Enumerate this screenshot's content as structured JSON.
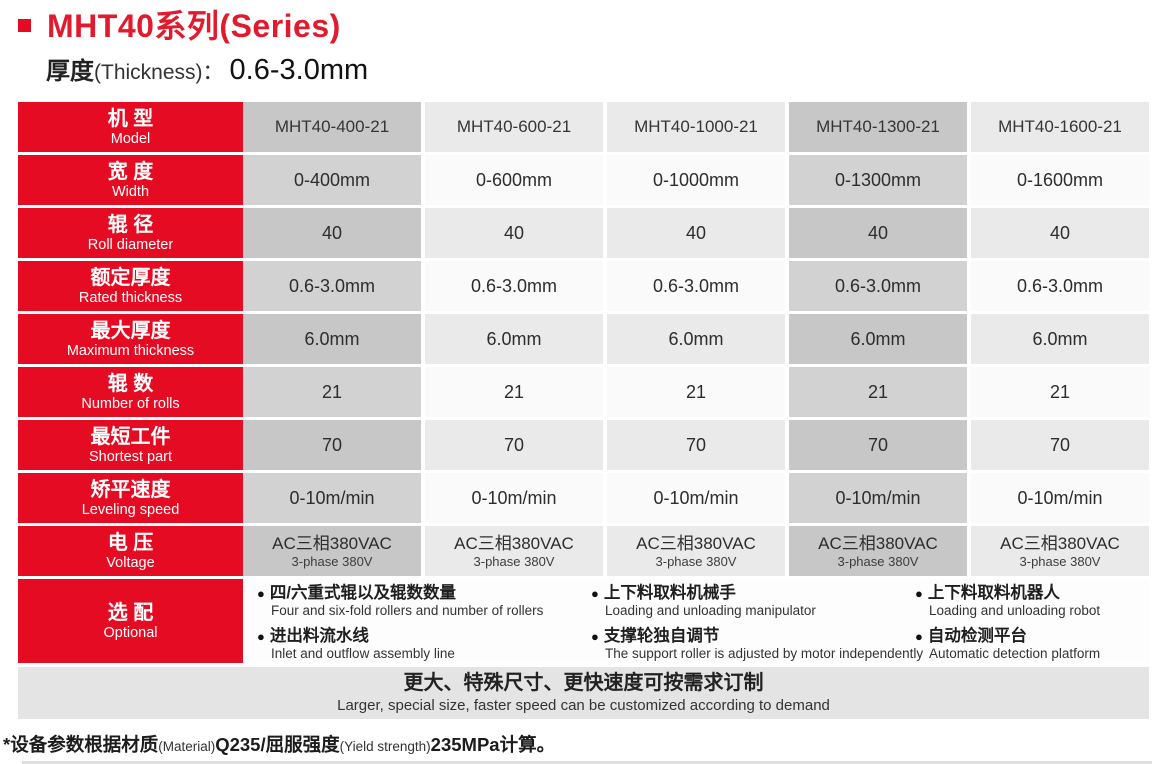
{
  "icons": {
    "bullet": "●"
  },
  "colors": {
    "brand_red": "#e40b22",
    "banner_gray": "#e4e4e4",
    "dark_col": "#c7c7c7",
    "light_col": "#eaeaea"
  },
  "header": {
    "title": "MHT40系列(Series)",
    "subtitle": {
      "cn": "厚度",
      "en": "(Thickness)：",
      "value": "0.6-3.0mm"
    }
  },
  "table": {
    "rows": [
      {
        "cn": "机 型",
        "en": "Model",
        "values": [
          "MHT40-400-21",
          "MHT40-600-21",
          "MHT40-1000-21",
          "MHT40-1300-21",
          "MHT40-1600-21"
        ]
      },
      {
        "cn": "宽 度",
        "en": "Width",
        "values": [
          "0-400mm",
          "0-600mm",
          "0-1000mm",
          "0-1300mm",
          "0-1600mm"
        ]
      },
      {
        "cn": "辊 径",
        "en": "Roll diameter",
        "values": [
          "40",
          "40",
          "40",
          "40",
          "40"
        ]
      },
      {
        "cn": "额定厚度",
        "en": "Rated thickness",
        "values": [
          "0.6-3.0mm",
          "0.6-3.0mm",
          "0.6-3.0mm",
          "0.6-3.0mm",
          "0.6-3.0mm"
        ]
      },
      {
        "cn": "最大厚度",
        "en": "Maximum thickness",
        "values": [
          "6.0mm",
          "6.0mm",
          "6.0mm",
          "6.0mm",
          "6.0mm"
        ]
      },
      {
        "cn": "辊 数",
        "en": "Number of rolls",
        "values": [
          "21",
          "21",
          "21",
          "21",
          "21"
        ]
      },
      {
        "cn": "最短工件",
        "en": "Shortest part",
        "values": [
          "70",
          "70",
          "70",
          "70",
          "70"
        ]
      },
      {
        "cn": "矫平速度",
        "en": "Leveling speed",
        "values": [
          "0-10m/min",
          "0-10m/min",
          "0-10m/min",
          "0-10m/min",
          "0-10m/min"
        ]
      },
      {
        "cn": "电 压",
        "en": "Voltage",
        "value_cn": "AC三相380VAC",
        "value_en": "3-phase 380V"
      }
    ],
    "optional": {
      "cn": "选 配",
      "en": "Optional",
      "groups": [
        {
          "items": [
            {
              "cn": "四/六重式辊以及辊数数量",
              "en": "Four and six-fold rollers and number of rollers"
            },
            {
              "cn": "进出料流水线",
              "en": "Inlet and outflow assembly line"
            }
          ]
        },
        {
          "items": [
            {
              "cn": "上下料取料机械手",
              "en": "Loading and unloading manipulator"
            },
            {
              "cn": "支撑轮独自调节",
              "en": "The support roller is adjusted by motor independently"
            }
          ]
        },
        {
          "items": [
            {
              "cn": "上下料取料机器人",
              "en": "Loading and unloading robot"
            },
            {
              "cn": "自动检测平台",
              "en": "Automatic detection platform"
            }
          ]
        }
      ]
    },
    "banner": {
      "cn": "更大、特殊尺寸、更快速度可按需求订制",
      "en": "Larger, special size, faster speed can be customized according to demand"
    }
  },
  "footnote": {
    "p1": "*设备参数根据材质",
    "p2": "(Material)",
    "p3": "Q235/屈服强度",
    "p4": "(Yield strength)",
    "p5": "235MPa计算。"
  }
}
